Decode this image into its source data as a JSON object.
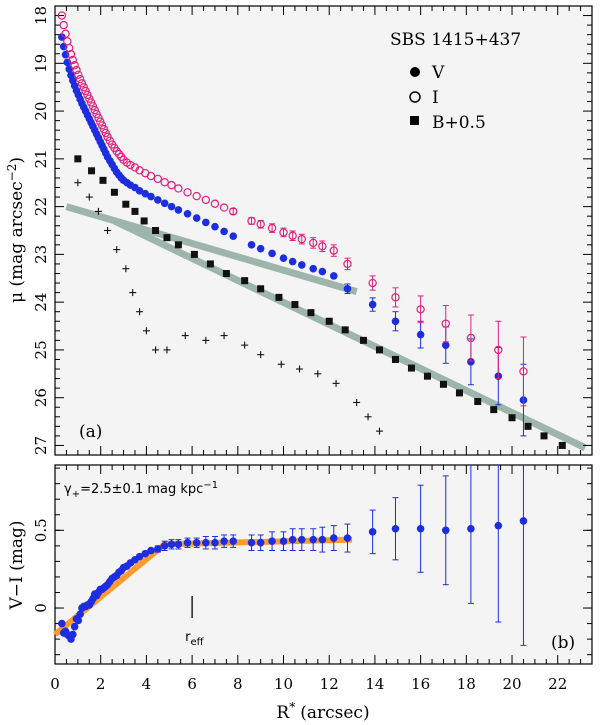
{
  "chart_data": [
    {
      "type": "scatter",
      "panel_label": "(a)",
      "object_label": "SBS 1415+437",
      "ylabel": "μ (mag arcsec",
      "ylabel_exp": "−2",
      "ylabel_close": ")",
      "xlim": [
        0,
        23.5
      ],
      "ylim": [
        27.2,
        17.8
      ],
      "y_inverted": true,
      "yticks": [
        18,
        19,
        20,
        21,
        22,
        23,
        24,
        25,
        26,
        27
      ],
      "legend": [
        {
          "symbol": "filled-circle",
          "label": "V",
          "color": "#000000"
        },
        {
          "symbol": "open-circle",
          "label": "I",
          "color": "#000000"
        },
        {
          "symbol": "filled-square",
          "label": "B+0.5",
          "color": "#000000"
        }
      ],
      "series": [
        {
          "name": "V",
          "marker": "filled-circle",
          "color": "#1c2ee0",
          "x": [
            0.3,
            0.38,
            0.46,
            0.54,
            0.62,
            0.7,
            0.78,
            0.86,
            0.94,
            1.02,
            1.1,
            1.18,
            1.26,
            1.34,
            1.42,
            1.5,
            1.58,
            1.66,
            1.74,
            1.82,
            1.9,
            1.98,
            2.06,
            2.14,
            2.22,
            2.3,
            2.4,
            2.5,
            2.6,
            2.7,
            2.8,
            2.9,
            3.0,
            3.15,
            3.3,
            3.5,
            3.7,
            3.95,
            4.2,
            4.5,
            4.8,
            5.1,
            5.4,
            5.8,
            6.2,
            6.6,
            7.0,
            7.4,
            7.8,
            8.6,
            9.0,
            9.5,
            10.0,
            10.4,
            10.8,
            11.3,
            11.7,
            12.2,
            12.8,
            13.9,
            14.9,
            16.0,
            17.1,
            18.2,
            19.4,
            20.5
          ],
          "y": [
            18.45,
            18.65,
            18.82,
            18.98,
            19.12,
            19.25,
            19.36,
            19.47,
            19.57,
            19.66,
            19.75,
            19.84,
            19.92,
            20.0,
            20.08,
            20.16,
            20.24,
            20.32,
            20.4,
            20.48,
            20.56,
            20.64,
            20.72,
            20.8,
            20.88,
            20.96,
            21.04,
            21.12,
            21.2,
            21.28,
            21.34,
            21.4,
            21.45,
            21.5,
            21.55,
            21.6,
            21.67,
            21.73,
            21.79,
            21.86,
            21.93,
            22.0,
            22.07,
            22.15,
            22.24,
            22.33,
            22.42,
            22.52,
            22.62,
            22.8,
            22.88,
            22.98,
            23.08,
            23.15,
            23.22,
            23.3,
            23.36,
            23.45,
            23.72,
            24.05,
            24.4,
            24.68,
            24.9,
            25.25,
            25.55,
            26.05
          ],
          "err": [
            0,
            0,
            0,
            0,
            0,
            0,
            0,
            0,
            0,
            0,
            0,
            0,
            0,
            0,
            0,
            0,
            0,
            0,
            0,
            0,
            0,
            0,
            0,
            0,
            0,
            0,
            0,
            0,
            0,
            0,
            0,
            0,
            0,
            0,
            0,
            0,
            0,
            0,
            0,
            0,
            0,
            0,
            0,
            0,
            0,
            0,
            0,
            0,
            0,
            0,
            0,
            0,
            0,
            0,
            0,
            0,
            0,
            0,
            0.1,
            0.14,
            0.2,
            0.28,
            0.38,
            0.48,
            0.6,
            0.75
          ]
        },
        {
          "name": "I",
          "marker": "open-circle",
          "color": "#e0207a",
          "x": [
            0.3,
            0.38,
            0.46,
            0.54,
            0.62,
            0.7,
            0.78,
            0.86,
            0.94,
            1.02,
            1.1,
            1.18,
            1.26,
            1.34,
            1.42,
            1.5,
            1.58,
            1.66,
            1.74,
            1.82,
            1.9,
            1.98,
            2.06,
            2.14,
            2.22,
            2.3,
            2.4,
            2.5,
            2.6,
            2.7,
            2.8,
            2.9,
            3.0,
            3.15,
            3.3,
            3.5,
            3.7,
            3.95,
            4.2,
            4.5,
            4.8,
            5.1,
            5.4,
            5.8,
            6.2,
            6.6,
            7.0,
            7.4,
            7.8,
            8.6,
            9.0,
            9.5,
            10.0,
            10.4,
            10.8,
            11.3,
            11.7,
            12.2,
            12.8,
            13.9,
            14.9,
            16.0,
            17.1,
            18.2,
            19.4,
            20.5
          ],
          "y": [
            18.0,
            18.2,
            18.38,
            18.54,
            18.68,
            18.81,
            18.93,
            19.04,
            19.14,
            19.24,
            19.33,
            19.42,
            19.5,
            19.58,
            19.66,
            19.74,
            19.82,
            19.9,
            19.98,
            20.06,
            20.14,
            20.22,
            20.3,
            20.38,
            20.46,
            20.54,
            20.62,
            20.7,
            20.77,
            20.84,
            20.9,
            20.96,
            21.02,
            21.08,
            21.13,
            21.18,
            21.24,
            21.3,
            21.36,
            21.42,
            21.49,
            21.55,
            21.62,
            21.7,
            21.78,
            21.86,
            21.94,
            22.02,
            22.1,
            22.3,
            22.37,
            22.45,
            22.54,
            22.61,
            22.68,
            22.76,
            22.83,
            22.92,
            23.2,
            23.6,
            23.9,
            24.15,
            24.45,
            24.75,
            25.0,
            25.45
          ],
          "err": [
            0,
            0,
            0,
            0,
            0,
            0,
            0,
            0,
            0,
            0,
            0,
            0,
            0,
            0,
            0,
            0,
            0,
            0,
            0,
            0,
            0,
            0,
            0,
            0,
            0,
            0,
            0,
            0,
            0,
            0,
            0,
            0,
            0,
            0,
            0,
            0,
            0,
            0,
            0,
            0,
            0,
            0,
            0,
            0,
            0,
            0,
            0,
            0,
            0.06,
            0.07,
            0.08,
            0.09,
            0.09,
            0.1,
            0.1,
            0.11,
            0.11,
            0.12,
            0.12,
            0.15,
            0.2,
            0.28,
            0.38,
            0.48,
            0.6,
            0.72
          ]
        },
        {
          "name": "B+0.5",
          "marker": "filled-square",
          "color": "#111111",
          "x": [
            1.0,
            1.6,
            2.1,
            2.6,
            3.1,
            3.5,
            3.9,
            4.4,
            4.9,
            5.4,
            6.1,
            6.8,
            7.5,
            8.3,
            9.0,
            9.8,
            10.5,
            11.2,
            12.0,
            12.7,
            13.5,
            14.2,
            14.9,
            15.6,
            16.3,
            17.0,
            17.7,
            18.5,
            19.2,
            20.0,
            20.7,
            21.4,
            22.2
          ],
          "y": [
            21.0,
            21.25,
            21.45,
            21.7,
            21.95,
            22.1,
            22.3,
            22.5,
            22.65,
            22.8,
            23.0,
            23.2,
            23.4,
            23.55,
            23.72,
            23.9,
            24.05,
            24.22,
            24.4,
            24.58,
            24.8,
            25.0,
            25.2,
            25.38,
            25.55,
            25.72,
            25.9,
            26.08,
            26.25,
            26.42,
            26.6,
            26.8,
            27.0
          ]
        },
        {
          "name": "",
          "marker": "plus",
          "color": "#111111",
          "x": [
            1.0,
            1.5,
            1.9,
            2.3,
            2.7,
            3.1,
            3.4,
            3.7,
            4.0,
            4.4,
            4.9,
            5.7,
            6.6,
            7.4,
            8.3,
            9.0,
            9.9,
            10.7,
            11.5,
            12.3,
            13.2,
            13.7,
            14.2
          ],
          "y": [
            21.5,
            21.8,
            22.1,
            22.5,
            22.9,
            23.3,
            23.8,
            24.2,
            24.6,
            25.0,
            25.0,
            24.7,
            24.8,
            24.7,
            24.9,
            25.1,
            25.3,
            25.4,
            25.5,
            25.7,
            26.1,
            26.4,
            26.7
          ]
        }
      ],
      "fits": [
        {
          "color": "#9db5ab",
          "x": [
            0.5,
            13.2
          ],
          "y": [
            22.0,
            23.78
          ]
        },
        {
          "color": "#9db5ab",
          "x": [
            2.6,
            23.2
          ],
          "y": [
            22.3,
            27.05
          ]
        }
      ]
    },
    {
      "type": "scatter",
      "panel_label": "(b)",
      "annotation_gamma": "γ",
      "annotation_sub": "+",
      "annotation_rest": "=2.5±0.1 mag kpc",
      "annotation_exp": "−1",
      "reff_label": "r",
      "reff_sub": "eff",
      "reff_x": 6.0,
      "xlabel": "R",
      "xlabel_sup": "*",
      "xlabel_rest": "(arcsec)",
      "ylabel": "V−I (mag)",
      "xlim": [
        0,
        23.5
      ],
      "ylim": [
        -0.36,
        0.92
      ],
      "xticks": [
        0,
        2,
        4,
        6,
        8,
        10,
        12,
        14,
        16,
        18,
        20,
        22
      ],
      "ytick_labels": [
        "0",
        "0.5"
      ],
      "ytick_values": [
        0,
        0.5
      ],
      "series": [
        {
          "name": "V−I",
          "marker": "filled-circle",
          "color": "#1c2ee0",
          "x": [
            0.3,
            0.38,
            0.46,
            0.54,
            0.62,
            0.7,
            0.78,
            0.86,
            0.94,
            1.02,
            1.1,
            1.18,
            1.26,
            1.34,
            1.42,
            1.5,
            1.58,
            1.66,
            1.74,
            1.82,
            1.9,
            1.98,
            2.06,
            2.14,
            2.22,
            2.3,
            2.4,
            2.5,
            2.6,
            2.7,
            2.8,
            2.9,
            3.0,
            3.15,
            3.3,
            3.5,
            3.7,
            3.95,
            4.2,
            4.5,
            4.8,
            5.1,
            5.4,
            5.8,
            6.2,
            6.6,
            7.0,
            7.4,
            7.8,
            8.6,
            9.0,
            9.5,
            10.0,
            10.4,
            10.8,
            11.3,
            11.7,
            12.2,
            12.8,
            13.9,
            14.9,
            16.0,
            17.1,
            18.2,
            19.4,
            20.5
          ],
          "y": [
            -0.1,
            -0.16,
            -0.15,
            -0.17,
            -0.18,
            -0.2,
            -0.17,
            -0.12,
            -0.07,
            -0.08,
            -0.04,
            0.0,
            0.01,
            0.01,
            0.02,
            0.02,
            0.04,
            0.06,
            0.09,
            0.08,
            0.1,
            0.12,
            0.12,
            0.13,
            0.14,
            0.15,
            0.17,
            0.19,
            0.2,
            0.21,
            0.23,
            0.24,
            0.26,
            0.27,
            0.29,
            0.31,
            0.33,
            0.35,
            0.37,
            0.38,
            0.4,
            0.41,
            0.41,
            0.42,
            0.42,
            0.42,
            0.42,
            0.43,
            0.43,
            0.42,
            0.42,
            0.43,
            0.43,
            0.44,
            0.44,
            0.44,
            0.44,
            0.45,
            0.45,
            0.49,
            0.51,
            0.51,
            0.5,
            0.51,
            0.53,
            0.56
          ],
          "err": [
            0,
            0,
            0,
            0,
            0,
            0,
            0,
            0,
            0,
            0,
            0,
            0,
            0,
            0,
            0,
            0,
            0,
            0,
            0,
            0,
            0,
            0,
            0,
            0,
            0,
            0,
            0,
            0,
            0,
            0,
            0,
            0,
            0,
            0,
            0,
            0,
            0,
            0,
            0,
            0.02,
            0.03,
            0.03,
            0.03,
            0.03,
            0.03,
            0.04,
            0.04,
            0.04,
            0.04,
            0.05,
            0.05,
            0.06,
            0.06,
            0.07,
            0.07,
            0.07,
            0.08,
            0.08,
            0.09,
            0.14,
            0.2,
            0.28,
            0.35,
            0.48,
            0.62,
            0.8
          ]
        }
      ],
      "fits": [
        {
          "color": "#ff9a2e",
          "x": [
            0.0,
            4.8,
            13.0
          ],
          "y": [
            -0.17,
            0.41,
            0.44
          ]
        }
      ]
    }
  ]
}
